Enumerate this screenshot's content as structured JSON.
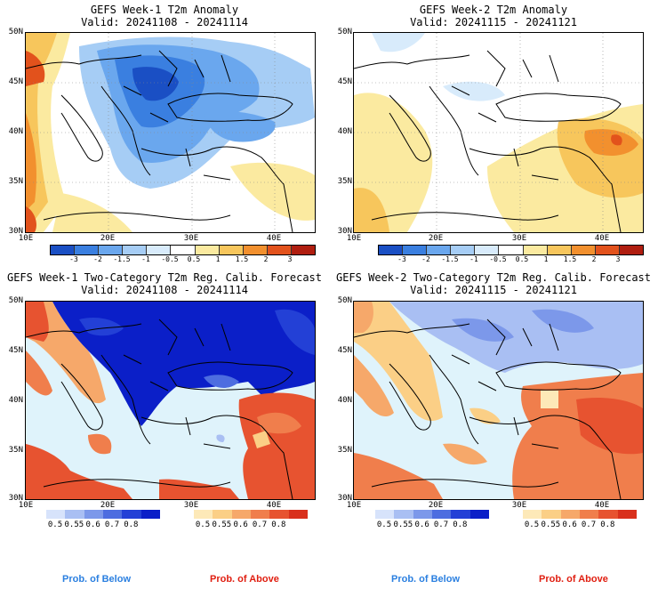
{
  "panels": [
    {
      "title": "GEFS Week-1 T2m Anomaly",
      "valid": "Valid: 20241108 - 20241114"
    },
    {
      "title": "GEFS Week-2 T2m Anomaly",
      "valid": "Valid: 20241115 - 20241121"
    },
    {
      "title": "GEFS Week-1 Two-Category T2m Reg. Calib. Forecast",
      "valid": "Valid: 20241108 - 20241114"
    },
    {
      "title": "GEFS Week-2 Two-Category T2m Reg. Calib. Forecast",
      "valid": "Valid: 20241115 - 20241121"
    }
  ],
  "axes": {
    "lat_labels": [
      "50N",
      "45N",
      "40N",
      "35N",
      "30N"
    ],
    "lon_labels": [
      "10E",
      "20E",
      "30E",
      "40E"
    ]
  },
  "anomaly_colorbar": {
    "ticks": [
      "-3",
      "-2",
      "-1.5",
      "-1",
      "-0.5",
      "0.5",
      "1",
      "1.5",
      "2",
      "3"
    ],
    "colors": [
      "#1a4fc4",
      "#3a7fe0",
      "#6aa7ee",
      "#a6cdf5",
      "#d8ebfb",
      "#ffffff",
      "#fbeaa0",
      "#f7c65c",
      "#f2902e",
      "#e2521c",
      "#b01e10"
    ]
  },
  "probability_colorbar": {
    "below_ticks": [
      "0.5",
      "0.55",
      "0.6",
      "0.7",
      "0.8"
    ],
    "above_ticks": [
      "0.5",
      "0.55",
      "0.6",
      "0.7",
      "0.8"
    ],
    "below_colors": [
      "#d7e3fb",
      "#a9bff3",
      "#7c98ea",
      "#4d6de0",
      "#2340d6",
      "#0b1fc8"
    ],
    "above_colors": [
      "#fde9b8",
      "#fbcf86",
      "#f6a86a",
      "#f07e4c",
      "#e75330",
      "#d9301c"
    ],
    "below_label": "Prob. of Below",
    "above_label": "Prob. of Above",
    "below_label_color": "#2a7fe0",
    "above_label_color": "#e01e10"
  },
  "sea_color": "#dff3fb"
}
